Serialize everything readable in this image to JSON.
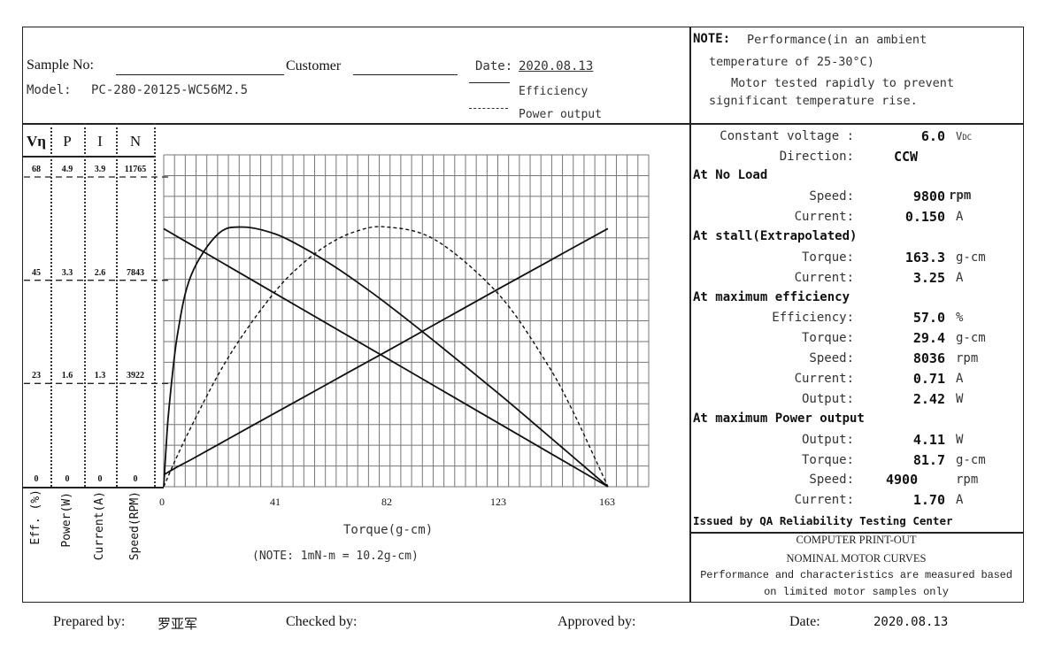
{
  "header": {
    "sample_no_label": "Sample No:",
    "customer_label": "Customer",
    "date_label": "Date:",
    "date_value": "2020.08.13",
    "model_label": "Model:",
    "model_value": "PC-280-20125-WC56M2.5",
    "legend": [
      {
        "label": "Efficiency",
        "style": "solid"
      },
      {
        "label": "Power output",
        "style": "dashed"
      }
    ]
  },
  "note": {
    "title": "NOTE:",
    "line1": "Performance(in an ambient",
    "line2": "temperature of 25-30°C)",
    "line3": "Motor tested rapidly to prevent",
    "line4": "significant temperature rise."
  },
  "specs": {
    "constant_voltage": {
      "label": "Constant voltage :",
      "value": "6.0",
      "unit": "VDC"
    },
    "direction": {
      "label": "Direction:",
      "value": "CCW"
    },
    "no_load": {
      "title": "At No Load",
      "speed": {
        "label": "Speed:",
        "value": "9800",
        "unit": "rpm"
      },
      "current": {
        "label": "Current:",
        "value": "0.150",
        "unit": "A"
      }
    },
    "stall": {
      "title": "At stall(Extrapolated)",
      "torque": {
        "label": "Torque:",
        "value": "163.3",
        "unit": "g-cm"
      },
      "current": {
        "label": "Current:",
        "value": "3.25",
        "unit": "A"
      }
    },
    "max_efficiency": {
      "title": "At maximum efficiency",
      "efficiency": {
        "label": "Efficiency:",
        "value": "57.0",
        "unit": "%"
      },
      "torque": {
        "label": "Torque:",
        "value": "29.4",
        "unit": "g-cm"
      },
      "speed": {
        "label": "Speed:",
        "value": "8036",
        "unit": "rpm"
      },
      "current": {
        "label": "Current:",
        "value": "0.71",
        "unit": "A"
      },
      "output": {
        "label": "Output:",
        "value": "2.42",
        "unit": "W"
      }
    },
    "max_power": {
      "title": "At maximum Power output",
      "output": {
        "label": "Output:",
        "value": "4.11",
        "unit": "W"
      },
      "torque": {
        "label": "Torque:",
        "value": "81.7",
        "unit": "g-cm"
      },
      "speed": {
        "label": "Speed:",
        "value": "4900",
        "unit": "rpm"
      },
      "current": {
        "label": "Current:",
        "value": "1.70",
        "unit": "A"
      }
    },
    "issued_by": "Issued by QA Reliability Testing Center"
  },
  "printout": {
    "line1": "COMPUTER PRINT-OUT",
    "line2": "NOMINAL MOTOR CURVES",
    "line3": "Performance and characteristics are measured based",
    "line4": "on limited motor samples only"
  },
  "footer": {
    "prepared_label": "Prepared by:",
    "prepared_value": "罗亚军",
    "checked_label": "Checked by:",
    "approved_label": "Approved by:",
    "date_label": "Date:",
    "date_value": "2020.08.13"
  },
  "chart_data": {
    "type": "line",
    "xlabel": "Torque(g-cm)",
    "note": "(NOTE: 1mN-m = 10.2g-cm)",
    "xlim": [
      0,
      163
    ],
    "xticks": [
      "0",
      "41",
      "82",
      "123",
      "163"
    ],
    "grid": true,
    "axes": [
      {
        "key": "eff",
        "head": "Vη",
        "title": "Eff. (%)",
        "max": 68,
        "ticks": [
          "0",
          "23",
          "45",
          "68"
        ]
      },
      {
        "key": "power",
        "head": "P",
        "title": "Power(W)",
        "max": 4.9,
        "ticks": [
          "0",
          "1.6",
          "3.3",
          "4.9"
        ]
      },
      {
        "key": "current",
        "head": "I",
        "title": "Current(A)",
        "max": 3.9,
        "ticks": [
          "0",
          "1.3",
          "2.6",
          "3.9"
        ]
      },
      {
        "key": "speed",
        "head": "N",
        "title": "Speed(RPM)",
        "max": 11765,
        "ticks": [
          "0",
          "3922",
          "7843",
          "11765"
        ]
      }
    ],
    "torque": [
      0,
      1,
      2,
      5,
      10,
      20,
      29.4,
      41,
      50,
      60,
      70,
      81.7,
      100,
      123,
      140,
      150,
      163.3
    ],
    "series": [
      {
        "name": "Efficiency",
        "axis": "eff",
        "style": "solid",
        "values": [
          0,
          9.9,
          17.6,
          33.2,
          46.3,
          55.5,
          57.0,
          55.5,
          52.9,
          49.4,
          45.4,
          40.3,
          31.7,
          20.5,
          11.9,
          6.8,
          0
        ]
      },
      {
        "name": "Power output",
        "axis": "power",
        "style": "dashed",
        "values": [
          0,
          0.1,
          0.2,
          0.49,
          0.94,
          1.77,
          2.42,
          3.09,
          3.49,
          3.82,
          4.03,
          4.11,
          3.9,
          3.05,
          2.01,
          1.23,
          0
        ]
      },
      {
        "name": "Current",
        "axis": "current",
        "style": "solid",
        "values": [
          0.15,
          0.17,
          0.19,
          0.25,
          0.34,
          0.53,
          0.71,
          0.93,
          1.1,
          1.29,
          1.48,
          1.7,
          2.05,
          2.49,
          2.81,
          3.0,
          3.25
        ]
      },
      {
        "name": "Speed",
        "axis": "speed",
        "style": "solid",
        "values": [
          9800,
          9740,
          9680,
          9500,
          9200,
          8600,
          8036,
          7339,
          6799,
          6199,
          5599,
          4900,
          3799,
          2418,
          1398,
          798,
          0
        ]
      }
    ]
  }
}
